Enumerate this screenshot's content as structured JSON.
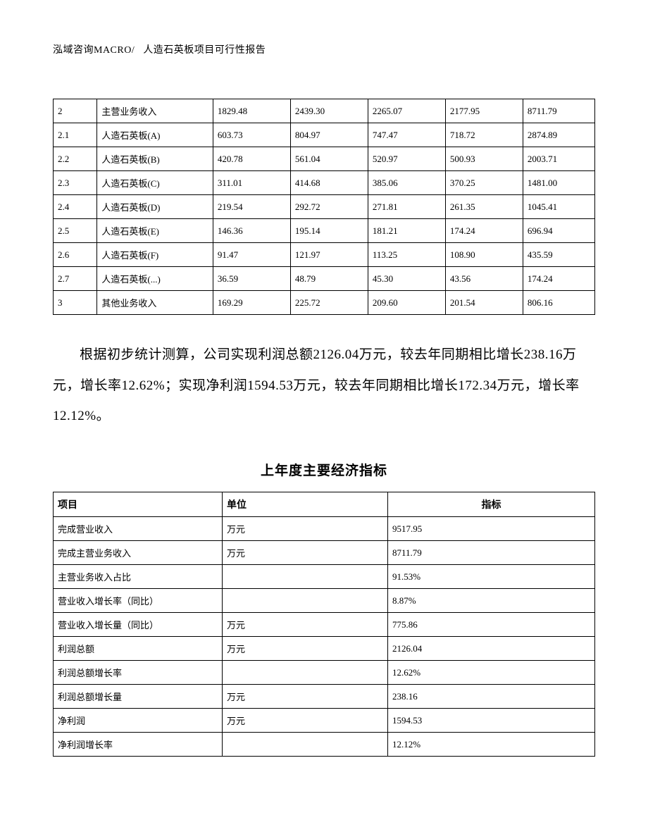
{
  "header": {
    "left": "泓域咨询MACRO/",
    "right": "人造石英板项目可行性报告"
  },
  "table1": {
    "columns": {
      "count": 7
    },
    "rows": [
      {
        "idx": "2",
        "name": "主营业务收入",
        "v1": "1829.48",
        "v2": "2439.30",
        "v3": "2265.07",
        "v4": "2177.95",
        "v5": "8711.79"
      },
      {
        "idx": "2.1",
        "name": "人造石英板(A)",
        "v1": "603.73",
        "v2": "804.97",
        "v3": "747.47",
        "v4": "718.72",
        "v5": "2874.89"
      },
      {
        "idx": "2.2",
        "name": "人造石英板(B)",
        "v1": "420.78",
        "v2": "561.04",
        "v3": "520.97",
        "v4": "500.93",
        "v5": "2003.71"
      },
      {
        "idx": "2.3",
        "name": "人造石英板(C)",
        "v1": "311.01",
        "v2": "414.68",
        "v3": "385.06",
        "v4": "370.25",
        "v5": "1481.00"
      },
      {
        "idx": "2.4",
        "name": "人造石英板(D)",
        "v1": "219.54",
        "v2": "292.72",
        "v3": "271.81",
        "v4": "261.35",
        "v5": "1045.41"
      },
      {
        "idx": "2.5",
        "name": "人造石英板(E)",
        "v1": "146.36",
        "v2": "195.14",
        "v3": "181.21",
        "v4": "174.24",
        "v5": "696.94"
      },
      {
        "idx": "2.6",
        "name": "人造石英板(F)",
        "v1": "91.47",
        "v2": "121.97",
        "v3": "113.25",
        "v4": "108.90",
        "v5": "435.59"
      },
      {
        "idx": "2.7",
        "name": "人造石英板(...)",
        "v1": "36.59",
        "v2": "48.79",
        "v3": "45.30",
        "v4": "43.56",
        "v5": "174.24"
      },
      {
        "idx": "3",
        "name": "其他业务收入",
        "v1": "169.29",
        "v2": "225.72",
        "v3": "209.60",
        "v4": "201.54",
        "v5": "806.16"
      }
    ]
  },
  "paragraph": "根据初步统计测算，公司实现利润总额2126.04万元，较去年同期相比增长238.16万元，增长率12.62%；实现净利润1594.53万元，较去年同期相比增长172.34万元，增长率12.12%。",
  "section_title": "上年度主要经济指标",
  "table2": {
    "headers": {
      "item": "项目",
      "unit": "单位",
      "value": "指标"
    },
    "rows": [
      {
        "item": "完成营业收入",
        "unit": "万元",
        "value": "9517.95"
      },
      {
        "item": "完成主营业务收入",
        "unit": "万元",
        "value": "8711.79"
      },
      {
        "item": "主营业务收入占比",
        "unit": "",
        "value": "91.53%"
      },
      {
        "item": "营业收入增长率（同比）",
        "unit": "",
        "value": "8.87%"
      },
      {
        "item": "营业收入增长量（同比）",
        "unit": "万元",
        "value": "775.86"
      },
      {
        "item": "利润总额",
        "unit": "万元",
        "value": "2126.04"
      },
      {
        "item": "利润总额增长率",
        "unit": "",
        "value": "12.62%"
      },
      {
        "item": "利润总额增长量",
        "unit": "万元",
        "value": "238.16"
      },
      {
        "item": "净利润",
        "unit": "万元",
        "value": "1594.53"
      },
      {
        "item": "净利润增长率",
        "unit": "",
        "value": "12.12%"
      }
    ]
  }
}
